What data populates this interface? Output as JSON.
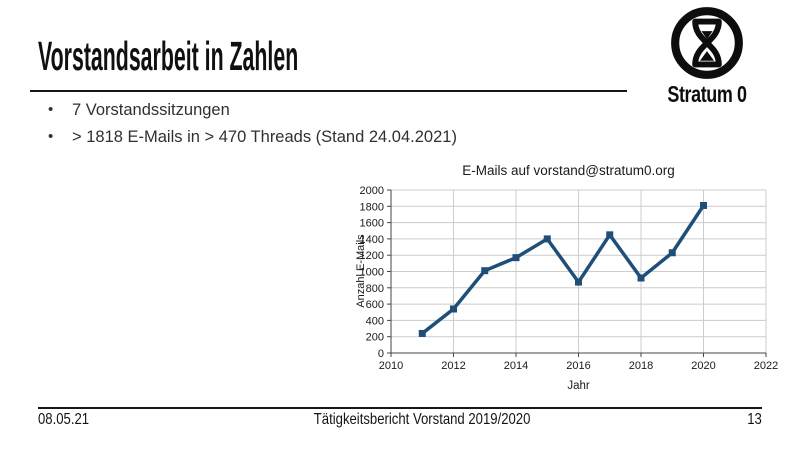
{
  "slide": {
    "title": "Vorstandsarbeit in Zahlen",
    "bullets": [
      "7 Vorstandssitzungen",
      "> 1818 E-Mails in > 470 Threads (Stand 24.04.2021)"
    ],
    "logo": {
      "text": "Stratum 0",
      "icon": "hourglass-in-circle-icon"
    },
    "footer": {
      "date": "08.05.21",
      "center": "Tätigkeitsbericht Vorstand 2019/2020",
      "page": "13"
    }
  },
  "colors": {
    "series": "#1F4E79",
    "grid": "#cccccc",
    "axis": "#444444",
    "chart_text": "#1a1a1a",
    "rule": "#161616"
  },
  "chart_data": {
    "type": "line",
    "title": "E-Mails auf vorstand@stratum0.org",
    "xlabel": "Jahr",
    "ylabel": "Anzahl E-Mails",
    "x": [
      2011,
      2012,
      2013,
      2014,
      2015,
      2016,
      2017,
      2018,
      2019,
      2020
    ],
    "values": [
      240,
      540,
      1010,
      1170,
      1400,
      870,
      1450,
      920,
      1230,
      1810
    ],
    "xlim": [
      2010,
      2022
    ],
    "ylim": [
      0,
      2000
    ],
    "x_ticks": [
      2010,
      2012,
      2014,
      2016,
      2018,
      2020,
      2022
    ],
    "y_tick_step": 200,
    "grid": true,
    "legend": "none",
    "marker": "square",
    "series_color": "#1F4E79"
  }
}
